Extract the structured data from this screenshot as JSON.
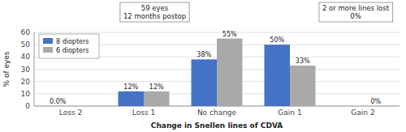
{
  "chart_data": {
    "type": "bar",
    "categories": [
      "Loss 2",
      "Loss 1",
      "No change",
      "Gain 1",
      "Gain 2"
    ],
    "series": [
      {
        "name": "8 diopters",
        "color": "#4472C4",
        "values": [
          0.0,
          12,
          38,
          50,
          0
        ],
        "value_labels": [
          "0.0%",
          "12%",
          "38%",
          "50%",
          null
        ]
      },
      {
        "name": "6 diopters",
        "color": "#A9A9A9",
        "values": [
          0.0,
          12,
          55,
          33,
          0
        ],
        "value_labels": [
          null,
          "12%",
          "55%",
          "33%",
          "0%"
        ]
      }
    ],
    "xlabel": "Change in Snellen lines of CDVA",
    "ylabel": "% of eyes",
    "ylim": [
      0,
      60
    ],
    "yticks": [
      0,
      10,
      20,
      30,
      40,
      50,
      60
    ],
    "grid": true,
    "legend": "upper left",
    "data_labels": true,
    "annotations": [
      "59 eyes\n12 months postop",
      "2 or more lines lost\n0%"
    ]
  }
}
